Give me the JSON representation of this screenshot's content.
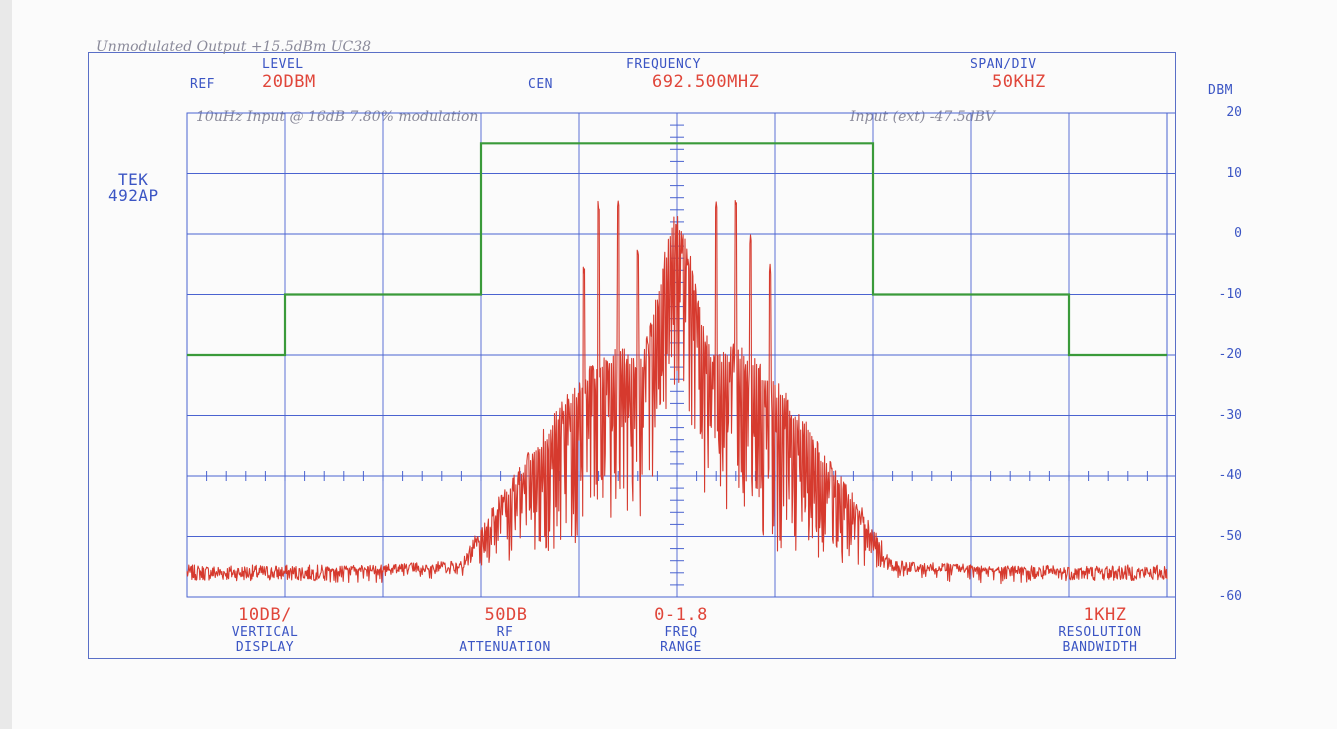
{
  "handwritten": {
    "top_note": "Unmodulated Output +15.5dBm UC38",
    "input_note": "10uHz Input @ 16dB 7.80% modulation",
    "input_level_note": "Input (ext) -47.5dBV"
  },
  "instrument": {
    "model_line1": "TEK",
    "model_line2": "492AP"
  },
  "header": {
    "ref_label": "REF",
    "level_label": "LEVEL",
    "level_value": "20DBM",
    "cen_label": "CEN",
    "frequency_label": "FREQUENCY",
    "frequency_value": "692.500MHZ",
    "span_label": "SPAN/DIV",
    "span_value": "50KHZ",
    "unit_label": "DBM"
  },
  "footer": {
    "vertical_value": "10DB/",
    "vertical_label1": "VERTICAL",
    "vertical_label2": "DISPLAY",
    "rf_value": "50DB",
    "rf_label1": "RF",
    "rf_label2": "ATTENUATION",
    "freq_value": "0-1.8",
    "freq_label1": "FREQ",
    "freq_label2": "RANGE",
    "res_value": "1KHZ",
    "res_label1": "RESOLUTION",
    "res_label2": "BANDWIDTH"
  },
  "colors": {
    "grid": "#4a63d0",
    "mask": "#3a9a3a",
    "trace": "#d63a2e",
    "text": "#3b55c4",
    "value": "#e0463a"
  },
  "chart_data": {
    "type": "line",
    "title": "",
    "xlabel": "",
    "ylabel": "DBM",
    "ylim": [
      -60,
      20
    ],
    "yticks": [
      20,
      10,
      0,
      -10,
      -20,
      -30,
      -40,
      -50,
      -60
    ],
    "ytick_labels": [
      "20",
      "10",
      "0",
      "-10",
      "-20",
      "-30",
      "-40",
      "-50",
      "-60"
    ],
    "grid": true,
    "x_divisions": 10,
    "x_unit": "divisions (50 kHz/div), center 692.500 MHz",
    "xlim": [
      -5,
      5
    ],
    "series": [
      {
        "kind": "mask",
        "color": "#3a9a3a",
        "x": [
          -5,
          -4,
          -4,
          -2,
          -2,
          2,
          2,
          4,
          4,
          5
        ],
        "y": [
          -20,
          -20,
          -10,
          -10,
          15,
          15,
          -10,
          -10,
          -20,
          -20
        ]
      },
      {
        "kind": "spectrum",
        "color": "#d63a2e",
        "noise_floor": -56,
        "envelope_x": [
          -5,
          -2.2,
          -2,
          -1.6,
          -1.2,
          -0.9,
          -0.6,
          -0.35,
          -0.05,
          0.05,
          0.35,
          0.6,
          0.9,
          1.2,
          1.6,
          2,
          2.2,
          5
        ],
        "envelope_y": [
          -56,
          -54,
          -48,
          -38,
          -28,
          -22,
          -18,
          -20,
          3,
          3,
          -20,
          -18,
          -22,
          -28,
          -38,
          -48,
          -54,
          -56
        ],
        "peaks_x": [
          -0.95,
          -0.8,
          -0.6,
          -0.4,
          0.4,
          0.6,
          0.75,
          0.95
        ],
        "peaks_y": [
          -5,
          6,
          6,
          -2,
          6,
          6,
          0,
          -5
        ]
      }
    ]
  }
}
